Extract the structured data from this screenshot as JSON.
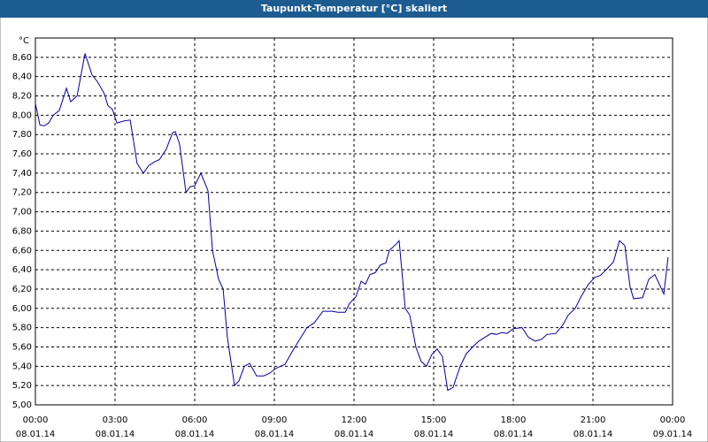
{
  "chart_data": {
    "type": "line",
    "title": "Taupunkt-Temperatur [°C] skaliert",
    "y_label": "°C",
    "x": [
      0,
      0.17,
      0.33,
      0.5,
      0.67,
      0.9,
      1.17,
      1.33,
      1.57,
      1.87,
      2.13,
      2.33,
      2.6,
      2.73,
      2.9,
      3.07,
      3.33,
      3.57,
      3.83,
      4.07,
      4.27,
      4.5,
      4.67,
      4.93,
      5.17,
      5.27,
      5.43,
      5.67,
      5.83,
      6,
      6.23,
      6.5,
      6.67,
      6.9,
      7.07,
      7.23,
      7.5,
      7.67,
      7.87,
      8.07,
      8.33,
      8.6,
      8.83,
      9.07,
      9.4,
      9.67,
      10,
      10.23,
      10.5,
      10.83,
      11.17,
      11.4,
      11.67,
      11.83,
      12.07,
      12.27,
      12.43,
      12.6,
      12.8,
      13,
      13.2,
      13.33,
      13.57,
      13.7,
      13.93,
      14.1,
      14.33,
      14.53,
      14.73,
      14.93,
      15.13,
      15.33,
      15.53,
      15.73,
      16,
      16.23,
      16.47,
      16.7,
      16.93,
      17.17,
      17.37,
      17.57,
      17.77,
      18,
      18.33,
      18.57,
      18.83,
      19.07,
      19.27,
      19.6,
      19.87,
      20.07,
      20.33,
      20.57,
      20.83,
      21.07,
      21.27,
      21.5,
      21.77,
      22,
      22.2,
      22.4,
      22.53,
      22.87,
      23.1,
      23.33,
      23.5,
      23.67,
      23.83
    ],
    "series": [
      {
        "color": "#0000a0",
        "values": [
          8.12,
          7.9,
          7.89,
          7.92,
          8.0,
          8.05,
          8.28,
          8.14,
          8.2,
          8.64,
          8.42,
          8.35,
          8.22,
          8.1,
          8.06,
          7.92,
          7.94,
          7.95,
          7.5,
          7.4,
          7.48,
          7.52,
          7.54,
          7.65,
          7.82,
          7.83,
          7.7,
          7.2,
          7.26,
          7.27,
          7.4,
          7.22,
          6.6,
          6.3,
          6.2,
          5.7,
          5.2,
          5.25,
          5.4,
          5.43,
          5.3,
          5.3,
          5.33,
          5.38,
          5.42,
          5.55,
          5.7,
          5.8,
          5.85,
          5.97,
          5.97,
          5.96,
          5.96,
          6.05,
          6.12,
          6.28,
          6.25,
          6.35,
          6.37,
          6.45,
          6.47,
          6.6,
          6.66,
          6.7,
          6.0,
          5.93,
          5.6,
          5.45,
          5.4,
          5.52,
          5.58,
          5.5,
          5.15,
          5.18,
          5.4,
          5.53,
          5.6,
          5.66,
          5.7,
          5.74,
          5.73,
          5.75,
          5.74,
          5.79,
          5.8,
          5.7,
          5.66,
          5.68,
          5.73,
          5.74,
          5.83,
          5.93,
          6.0,
          6.13,
          6.25,
          6.32,
          6.34,
          6.4,
          6.48,
          6.7,
          6.65,
          6.22,
          6.1,
          6.11,
          6.3,
          6.35,
          6.25,
          6.15,
          6.53
        ]
      }
    ],
    "xlim": [
      0,
      24
    ],
    "xticks": [
      {
        "value": 0,
        "label": "00:00",
        "date": "08.01.14"
      },
      {
        "value": 3,
        "label": "03:00",
        "date": "08.01.14"
      },
      {
        "value": 6,
        "label": "06:00",
        "date": "08.01.14"
      },
      {
        "value": 9,
        "label": "09:00",
        "date": "08.01.14"
      },
      {
        "value": 12,
        "label": "12:00",
        "date": "08.01.14"
      },
      {
        "value": 15,
        "label": "15:00",
        "date": "08.01.14"
      },
      {
        "value": 18,
        "label": "18:00",
        "date": "08.01.14"
      },
      {
        "value": 21,
        "label": "21:00",
        "date": "08.01.14"
      },
      {
        "value": 24,
        "label": "00:00",
        "date": "09.01.14"
      }
    ],
    "ylim": [
      5.0,
      8.8
    ],
    "yticks": [
      {
        "value": 5.0,
        "label": "5,00"
      },
      {
        "value": 5.2,
        "label": "5,20"
      },
      {
        "value": 5.4,
        "label": "5,40"
      },
      {
        "value": 5.6,
        "label": "5,60"
      },
      {
        "value": 5.8,
        "label": "5,80"
      },
      {
        "value": 6.0,
        "label": "6,00"
      },
      {
        "value": 6.2,
        "label": "6,20"
      },
      {
        "value": 6.4,
        "label": "6,40"
      },
      {
        "value": 6.6,
        "label": "6,60"
      },
      {
        "value": 6.8,
        "label": "6,80"
      },
      {
        "value": 7.0,
        "label": "7,00"
      },
      {
        "value": 7.2,
        "label": "7,20"
      },
      {
        "value": 7.4,
        "label": "7,40"
      },
      {
        "value": 7.6,
        "label": "7,60"
      },
      {
        "value": 7.8,
        "label": "7,80"
      },
      {
        "value": 8.0,
        "label": "8,00"
      },
      {
        "value": 8.2,
        "label": "8,20"
      },
      {
        "value": 8.4,
        "label": "8,40"
      },
      {
        "value": 8.6,
        "label": "8,60"
      }
    ],
    "grid": true
  }
}
